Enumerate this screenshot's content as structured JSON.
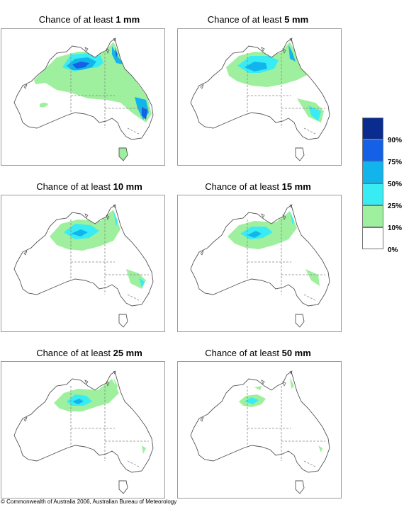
{
  "title_prefix": "Chance of at least",
  "panels": [
    {
      "amount": "1 mm",
      "level": 1
    },
    {
      "amount": "5 mm",
      "level": 2
    },
    {
      "amount": "10 mm",
      "level": 3
    },
    {
      "amount": "15 mm",
      "level": 4
    },
    {
      "amount": "25 mm",
      "level": 5
    },
    {
      "amount": "50 mm",
      "level": 6
    }
  ],
  "legend": {
    "labels": [
      "90%",
      "75%",
      "50%",
      "25%",
      "10%",
      "0%"
    ],
    "colors": [
      "#0a2c8e",
      "#1460e6",
      "#12b4ec",
      "#38ecf4",
      "#9ef09e",
      "#ffffff"
    ]
  },
  "map_colors": {
    "land": "#ffffff",
    "coast": "#555555",
    "border": "#888888"
  },
  "copyright": "© Commonwealth of Australia 2006, Australian Bureau of Meteorology"
}
